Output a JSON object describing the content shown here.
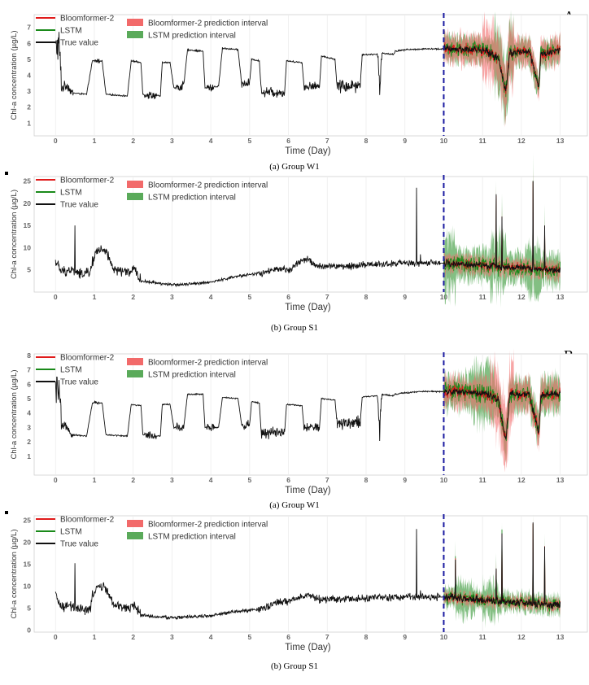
{
  "panel_labels": [
    "A",
    "B"
  ],
  "charts": [
    {
      "id": "A1",
      "caption": "(a) Group W1",
      "type": "line",
      "xlabel": "Time (Day)",
      "ylabel": "Chl-a concentration (µg/L)",
      "xlim": [
        -0.55,
        13.7
      ],
      "ylim": [
        0.2,
        7.8
      ],
      "x_ticks": [
        "0",
        "1",
        "2",
        "3",
        "4",
        "5",
        "6",
        "7",
        "8",
        "9",
        "10",
        "11",
        "12",
        "13"
      ],
      "y_ticks": [
        "1",
        "2",
        "3",
        "4",
        "5",
        "6",
        "7"
      ],
      "split_day": 10,
      "series_names": [
        "Bloomformer-2",
        "LSTM",
        "True value"
      ],
      "interval_names": [
        "Bloomformer-2 prediction interval",
        "LSTM prediction interval"
      ],
      "colors": {
        "bloomformer": "#e01b1b",
        "lstm": "#1a8a1a",
        "true": "#111111",
        "bloom_band": "#f26a6a",
        "lstm_band": "#5aaa5a",
        "split": "#1a1aa0"
      },
      "true_profile": [
        [
          0,
          5.7
        ],
        [
          0.1,
          5.8
        ],
        [
          0.15,
          3.2
        ],
        [
          0.3,
          3.4
        ],
        [
          0.42,
          2.9
        ],
        [
          0.8,
          2.8
        ],
        [
          0.95,
          4.9
        ],
        [
          1.2,
          4.9
        ],
        [
          1.3,
          2.8
        ],
        [
          1.85,
          2.7
        ],
        [
          1.95,
          4.9
        ],
        [
          2.2,
          4.8
        ],
        [
          2.25,
          2.8
        ],
        [
          2.7,
          2.7
        ],
        [
          2.75,
          4.8
        ],
        [
          2.95,
          4.8
        ],
        [
          3.05,
          3.2
        ],
        [
          3.3,
          3.3
        ],
        [
          3.4,
          5.6
        ],
        [
          3.8,
          5.5
        ],
        [
          3.85,
          3.2
        ],
        [
          4.2,
          3.3
        ],
        [
          4.3,
          5.7
        ],
        [
          4.7,
          5.6
        ],
        [
          4.8,
          3.4
        ],
        [
          5.0,
          3.5
        ],
        [
          5.05,
          5.0
        ],
        [
          5.25,
          4.9
        ],
        [
          5.3,
          3.0
        ],
        [
          5.9,
          2.9
        ],
        [
          5.95,
          4.9
        ],
        [
          6.35,
          4.8
        ],
        [
          6.4,
          3.3
        ],
        [
          6.8,
          3.3
        ],
        [
          6.85,
          5.2
        ],
        [
          7.2,
          5.0
        ],
        [
          7.25,
          3.3
        ],
        [
          7.85,
          3.4
        ],
        [
          7.9,
          5.3
        ],
        [
          8.3,
          5.3
        ],
        [
          8.35,
          3.0
        ],
        [
          8.4,
          5.4
        ],
        [
          8.7,
          5.3
        ],
        [
          8.75,
          5.5
        ],
        [
          9.0,
          5.6
        ],
        [
          9.5,
          5.65
        ],
        [
          10,
          5.65
        ],
        [
          11.0,
          5.6
        ],
        [
          11.4,
          5.1
        ],
        [
          11.6,
          3.0
        ],
        [
          11.7,
          5.4
        ],
        [
          12.2,
          5.5
        ],
        [
          12.45,
          3.3
        ],
        [
          12.5,
          5.3
        ],
        [
          13,
          5.6
        ]
      ],
      "noise_regions": [
        [
          0,
          0.15,
          1.2
        ],
        [
          0.15,
          0.45,
          0.3
        ],
        [
          1.0,
          1.15,
          0.15
        ],
        [
          2.3,
          2.6,
          0.25
        ],
        [
          3.1,
          3.3,
          0.35
        ],
        [
          3.9,
          4.1,
          0.3
        ],
        [
          4.8,
          5.0,
          0.3
        ],
        [
          5.3,
          5.9,
          0.35
        ],
        [
          6.4,
          6.8,
          0.3
        ],
        [
          7.25,
          7.85,
          0.45
        ],
        [
          8.3,
          8.4,
          0.8
        ],
        [
          10,
          13,
          0.25
        ]
      ],
      "bloom_halfwidth": 0.8,
      "lstm_halfwidth": 0.75,
      "bloom_extra": [
        [
          11.0,
          11.8,
          1.6
        ]
      ],
      "lstm_extra": [
        [
          11.3,
          11.8,
          1.8
        ]
      ]
    },
    {
      "id": "A2",
      "caption": "(b) Group S1",
      "type": "line",
      "xlabel": "Time (Day)",
      "ylabel": "Chl-a concentration (µg/L)",
      "xlim": [
        -0.55,
        13.7
      ],
      "ylim": [
        0,
        26
      ],
      "x_ticks": [
        "0",
        "1",
        "2",
        "3",
        "4",
        "5",
        "6",
        "7",
        "8",
        "9",
        "10",
        "11",
        "12",
        "13"
      ],
      "y_ticks": [
        "5",
        "10",
        "15",
        "20",
        "25"
      ],
      "split_day": 10,
      "series_names": [
        "Bloomformer-2",
        "LSTM",
        "True value"
      ],
      "interval_names": [
        "Bloomformer-2 prediction interval",
        "LSTM prediction interval"
      ],
      "colors": {
        "bloomformer": "#e01b1b",
        "lstm": "#1a8a1a",
        "true": "#111111",
        "bloom_band": "#f26a6a",
        "lstm_band": "#5aaa5a",
        "split": "#1a1aa0"
      },
      "true_profile": [
        [
          0,
          7
        ],
        [
          0.15,
          4.5
        ],
        [
          0.4,
          5
        ],
        [
          0.5,
          4.8
        ],
        [
          0.6,
          4
        ],
        [
          0.9,
          4.5
        ],
        [
          1.05,
          9.5
        ],
        [
          1.3,
          9
        ],
        [
          1.5,
          5
        ],
        [
          1.9,
          4.5
        ],
        [
          2.05,
          5
        ],
        [
          2.2,
          2.5
        ],
        [
          2.5,
          2.2
        ],
        [
          3.0,
          1.6
        ],
        [
          4.0,
          2.2
        ],
        [
          4.5,
          3.2
        ],
        [
          5.0,
          4
        ],
        [
          5.4,
          4.3
        ],
        [
          5.6,
          5
        ],
        [
          6.0,
          5
        ],
        [
          6.3,
          6.8
        ],
        [
          6.5,
          7.5
        ],
        [
          6.7,
          5.8
        ],
        [
          7.5,
          5.8
        ],
        [
          8.0,
          6.2
        ],
        [
          9.0,
          6.5
        ],
        [
          10,
          6.5
        ],
        [
          11,
          6
        ],
        [
          12,
          5.5
        ],
        [
          13,
          4.8
        ]
      ],
      "spikes": [
        [
          0.5,
          15
        ],
        [
          0.95,
          8
        ],
        [
          9.3,
          23.5
        ],
        [
          9.4,
          8.5
        ],
        [
          11.35,
          22
        ],
        [
          11.5,
          17
        ],
        [
          12.3,
          25
        ],
        [
          12.6,
          15
        ]
      ],
      "noise_regions": [
        [
          0,
          2.2,
          1.2
        ],
        [
          2.2,
          5.2,
          0.35
        ],
        [
          5.2,
          9.9,
          0.8
        ],
        [
          10,
          13,
          0.8
        ]
      ],
      "bloom_halfwidth": 1.8,
      "lstm_halfwidth": 3.2,
      "bloom_extra": [],
      "lstm_extra": [
        [
          10.0,
          10.3,
          6
        ],
        [
          11.2,
          11.6,
          5
        ],
        [
          12.1,
          12.5,
          4
        ]
      ]
    },
    {
      "id": "B1",
      "caption": "(a) Group W1",
      "type": "line",
      "xlabel": "Time (Day)",
      "ylabel": "Chl-a concentration (µg/L)",
      "xlim": [
        -0.55,
        13.7
      ],
      "ylim": [
        -0.3,
        8.1
      ],
      "x_ticks": [
        "0",
        "1",
        "2",
        "3",
        "4",
        "5",
        "6",
        "7",
        "8",
        "9",
        "10",
        "11",
        "12",
        "13"
      ],
      "y_ticks": [
        "1",
        "2",
        "3",
        "4",
        "5",
        "6",
        "7",
        "8"
      ],
      "split_day": 10,
      "series_names": [
        "Bloomformer-2",
        "LSTM",
        "True value"
      ],
      "interval_names": [
        "Bloomformer-2 prediction interval",
        "LSTM prediction interval"
      ],
      "colors": {
        "bloomformer": "#e01b1b",
        "lstm": "#1a8a1a",
        "true": "#111111",
        "bloom_band": "#f26a6a",
        "lstm_band": "#5aaa5a",
        "split": "#1a1aa0"
      },
      "true_profile": [
        [
          0,
          5.4
        ],
        [
          0.1,
          5.5
        ],
        [
          0.15,
          3.0
        ],
        [
          0.3,
          3.1
        ],
        [
          0.42,
          2.5
        ],
        [
          0.8,
          2.4
        ],
        [
          0.95,
          4.7
        ],
        [
          1.2,
          4.7
        ],
        [
          1.3,
          2.5
        ],
        [
          1.85,
          2.4
        ],
        [
          1.95,
          4.6
        ],
        [
          2.2,
          4.5
        ],
        [
          2.25,
          2.5
        ],
        [
          2.7,
          2.4
        ],
        [
          2.75,
          4.6
        ],
        [
          2.95,
          4.6
        ],
        [
          3.05,
          3.0
        ],
        [
          3.3,
          3.0
        ],
        [
          3.4,
          5.3
        ],
        [
          3.8,
          5.3
        ],
        [
          3.85,
          3.0
        ],
        [
          4.2,
          3.0
        ],
        [
          4.3,
          5.1
        ],
        [
          4.7,
          5.0
        ],
        [
          4.8,
          3.1
        ],
        [
          5.0,
          3.2
        ],
        [
          5.05,
          4.8
        ],
        [
          5.25,
          4.7
        ],
        [
          5.3,
          2.6
        ],
        [
          5.9,
          2.6
        ],
        [
          5.95,
          4.6
        ],
        [
          6.35,
          4.5
        ],
        [
          6.4,
          3.0
        ],
        [
          6.8,
          3.0
        ],
        [
          6.85,
          5.0
        ],
        [
          7.2,
          4.9
        ],
        [
          7.25,
          3.3
        ],
        [
          7.85,
          3.4
        ],
        [
          7.9,
          5.1
        ],
        [
          8.3,
          5.2
        ],
        [
          8.35,
          2.5
        ],
        [
          8.4,
          5.3
        ],
        [
          8.7,
          5.2
        ],
        [
          8.75,
          5.3
        ],
        [
          9.0,
          5.4
        ],
        [
          9.5,
          5.5
        ],
        [
          10,
          5.5
        ],
        [
          11.0,
          5.4
        ],
        [
          11.4,
          5.0
        ],
        [
          11.6,
          2.0
        ],
        [
          11.7,
          5.3
        ],
        [
          12.2,
          5.3
        ],
        [
          12.45,
          2.6
        ],
        [
          12.5,
          5.2
        ],
        [
          13,
          5.4
        ]
      ],
      "noise_regions": [
        [
          0,
          0.15,
          1.3
        ],
        [
          0.15,
          0.45,
          0.3
        ],
        [
          1.0,
          1.15,
          0.15
        ],
        [
          2.3,
          2.6,
          0.25
        ],
        [
          3.1,
          3.3,
          0.35
        ],
        [
          3.9,
          4.1,
          0.3
        ],
        [
          4.8,
          5.0,
          0.3
        ],
        [
          5.3,
          5.9,
          0.4
        ],
        [
          6.4,
          6.8,
          0.3
        ],
        [
          7.25,
          7.85,
          0.45
        ],
        [
          8.3,
          8.4,
          0.8
        ],
        [
          10,
          13,
          0.25
        ]
      ],
      "bloom_halfwidth": 1.0,
      "lstm_halfwidth": 1.1,
      "bloom_extra": [
        [
          11.2,
          11.8,
          2.2
        ]
      ],
      "lstm_extra": [
        [
          10.7,
          11.3,
          1.5
        ]
      ]
    },
    {
      "id": "B2",
      "caption": "(b) Group S1",
      "type": "line",
      "xlabel": "Time (Day)",
      "ylabel": "Chl-a concentration (µg/L)",
      "xlim": [
        -0.55,
        13.7
      ],
      "ylim": [
        -0.5,
        26
      ],
      "x_ticks": [
        "0",
        "1",
        "2",
        "3",
        "4",
        "5",
        "6",
        "7",
        "8",
        "9",
        "10",
        "11",
        "12",
        "13"
      ],
      "y_ticks": [
        "0",
        "5",
        "10",
        "15",
        "20",
        "25"
      ],
      "split_day": 10,
      "series_names": [
        "Bloomformer-2",
        "LSTM",
        "True value"
      ],
      "interval_names": [
        "Bloomformer-2 prediction interval",
        "LSTM prediction interval"
      ],
      "colors": {
        "bloomformer": "#e01b1b",
        "lstm": "#1a8a1a",
        "true": "#111111",
        "bloom_band": "#f26a6a",
        "lstm_band": "#5aaa5a",
        "split": "#1a1aa0"
      },
      "true_profile": [
        [
          0,
          8
        ],
        [
          0.15,
          5
        ],
        [
          0.4,
          5.5
        ],
        [
          0.5,
          5
        ],
        [
          0.6,
          4.5
        ],
        [
          0.9,
          4.8
        ],
        [
          1.05,
          10
        ],
        [
          1.3,
          9.5
        ],
        [
          1.5,
          5.5
        ],
        [
          1.9,
          5
        ],
        [
          2.05,
          5.5
        ],
        [
          2.2,
          3.5
        ],
        [
          2.5,
          3
        ],
        [
          3.0,
          2.8
        ],
        [
          4.0,
          3.2
        ],
        [
          4.5,
          4
        ],
        [
          5.0,
          4.5
        ],
        [
          5.4,
          5
        ],
        [
          5.6,
          6
        ],
        [
          6.0,
          6.5
        ],
        [
          6.3,
          7.5
        ],
        [
          6.5,
          8
        ],
        [
          6.7,
          7
        ],
        [
          7.5,
          7
        ],
        [
          8.0,
          7.3
        ],
        [
          9.0,
          7.5
        ],
        [
          10,
          7.5
        ],
        [
          11,
          6.8
        ],
        [
          12,
          6.2
        ],
        [
          13,
          5.5
        ]
      ],
      "spikes": [
        [
          0.5,
          15.2
        ],
        [
          0.95,
          9
        ],
        [
          9.3,
          23
        ],
        [
          9.4,
          9
        ],
        [
          10.3,
          16
        ],
        [
          11.35,
          14
        ],
        [
          11.5,
          22
        ],
        [
          12.3,
          24.5
        ],
        [
          12.6,
          19
        ]
      ],
      "noise_regions": [
        [
          0,
          2.2,
          1.2
        ],
        [
          2.2,
          5.2,
          0.4
        ],
        [
          5.2,
          9.9,
          0.9
        ],
        [
          10,
          13,
          0.9
        ]
      ],
      "bloom_halfwidth": 1.2,
      "lstm_halfwidth": 2.0,
      "bloom_extra": [],
      "lstm_extra": [
        [
          10.3,
          10.8,
          3
        ],
        [
          11.0,
          11.4,
          3.5
        ]
      ]
    }
  ]
}
